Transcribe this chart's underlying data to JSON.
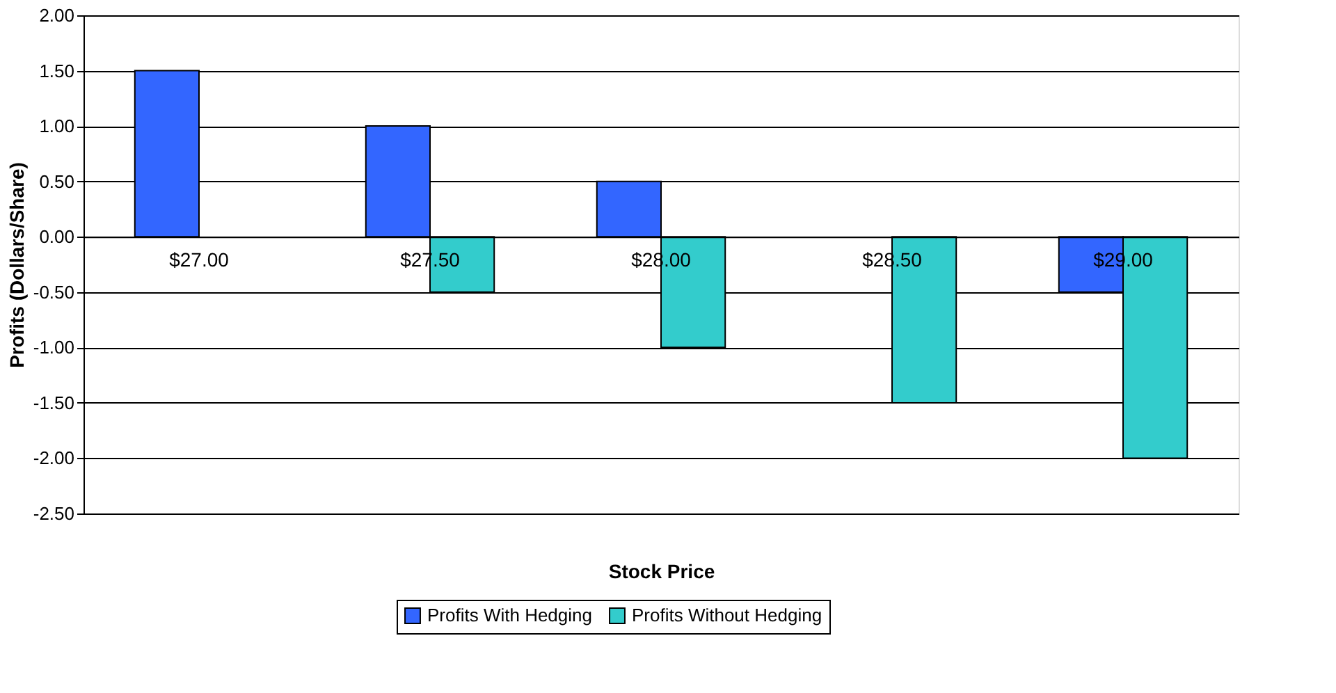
{
  "chart_data": {
    "type": "bar",
    "xlabel": "Stock Price",
    "ylabel": "Profits (Dollars/Share)",
    "categories": [
      "$27.00",
      "$27.50",
      "$28.00",
      "$28.50",
      "$29.00"
    ],
    "series": [
      {
        "name": "Profits With Hedging",
        "color": "#3366ff",
        "values": [
          1.5,
          1.0,
          0.5,
          0,
          -0.5
        ]
      },
      {
        "name": "Profits Without Hedging",
        "color": "#33cccc",
        "values": [
          0,
          -0.5,
          -1.0,
          -1.5,
          -2.0
        ]
      }
    ],
    "ylim": [
      -2.5,
      2.0
    ],
    "yticks": [
      {
        "value": -2.5,
        "label": "-2.50"
      },
      {
        "value": -2.0,
        "label": "-2.00"
      },
      {
        "value": -1.5,
        "label": "-1.50"
      },
      {
        "value": -1.0,
        "label": "-1.00"
      },
      {
        "value": -0.5,
        "label": "-0.50"
      },
      {
        "value": 0,
        "label": "0.00"
      },
      {
        "value": 0.5,
        "label": "0.50"
      },
      {
        "value": 1.0,
        "label": "1.00"
      },
      {
        "value": 1.5,
        "label": "1.50"
      },
      {
        "value": 2.0,
        "label": "2.00"
      }
    ],
    "grid": "y",
    "legend": "bottom"
  }
}
